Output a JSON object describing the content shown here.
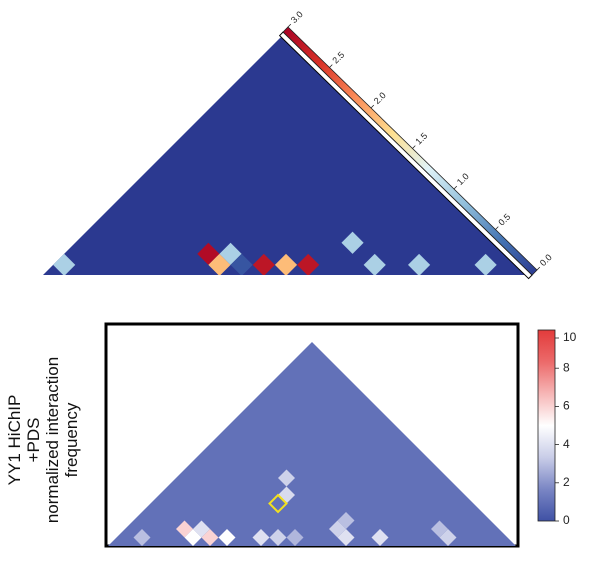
{
  "chart_data": [
    {
      "type": "heatmap",
      "title": "",
      "shape": "triangle",
      "colorbar": {
        "min": 0,
        "max": 3,
        "ticks": [
          "0.0",
          "0.5",
          "1.0",
          "1.5",
          "2.0",
          "2.5",
          "3.0"
        ],
        "colors": [
          "#2b3990",
          "#4575b4",
          "#91bfdb",
          "#e0f3f8",
          "#fee090",
          "#fc8d59",
          "#d73027",
          "#a50026"
        ]
      },
      "background_value": 0.0,
      "cells": [
        {
          "i": 0,
          "j": 1,
          "value": 1.0
        },
        {
          "i": 6,
          "j": 8,
          "value": 2.9
        },
        {
          "i": 7,
          "j": 8,
          "value": 1.9
        },
        {
          "i": 7,
          "j": 9,
          "value": 1.0
        },
        {
          "i": 8,
          "j": 9,
          "value": 0.2
        },
        {
          "i": 9,
          "j": 10,
          "value": 2.8
        },
        {
          "i": 10,
          "j": 11,
          "value": 1.9
        },
        {
          "i": 11,
          "j": 12,
          "value": 2.8
        },
        {
          "i": 12,
          "j": 15,
          "value": 1.0
        },
        {
          "i": 14,
          "j": 15,
          "value": 1.0
        },
        {
          "i": 16,
          "j": 17,
          "value": 1.0
        },
        {
          "i": 19,
          "j": 20,
          "value": 1.0
        }
      ]
    },
    {
      "type": "heatmap",
      "title": "",
      "shape": "triangle",
      "ylabel": [
        "YY1 HiChIP",
        "+PDS",
        "normalized interaction",
        "frequency"
      ],
      "colorbar": {
        "min": 0,
        "max": 10,
        "ticks": [
          "0",
          "2",
          "4",
          "6",
          "8",
          "10"
        ],
        "colors": [
          "#3f51a5",
          "#7a86c4",
          "#c9cde8",
          "#ffffff",
          "#f6b6b6",
          "#ec6a6a",
          "#e23b3b"
        ]
      },
      "background_value": 1.0,
      "cells": [
        {
          "i": 6,
          "j": 14,
          "value": 3.5
        },
        {
          "i": 7,
          "j": 13,
          "value": 3.8
        },
        {
          "i": 12,
          "j": 15,
          "value": 3.0
        },
        {
          "i": 12,
          "j": 14,
          "value": 3.5
        },
        {
          "i": 3,
          "j": 5,
          "value": 6.0
        },
        {
          "i": 4,
          "j": 6,
          "value": 4.0
        },
        {
          "i": 5,
          "j": 6,
          "value": 6.0
        },
        {
          "i": 6,
          "j": 7,
          "value": 5.0
        },
        {
          "i": 4,
          "j": 5,
          "value": 5.0
        },
        {
          "i": 8,
          "j": 9,
          "value": 4.0
        },
        {
          "i": 9,
          "j": 10,
          "value": 3.5
        },
        {
          "i": 13,
          "j": 14,
          "value": 4.0
        },
        {
          "i": 15,
          "j": 16,
          "value": 4.0
        },
        {
          "i": 19,
          "j": 20,
          "value": 3.5
        },
        {
          "i": 18,
          "j": 20,
          "value": 3.0
        },
        {
          "i": 1,
          "j": 2,
          "value": 3.0
        },
        {
          "i": 10,
          "j": 11,
          "value": 2.8
        }
      ],
      "highlight": {
        "i": 7,
        "j": 12,
        "color": "#f2e020"
      }
    }
  ]
}
